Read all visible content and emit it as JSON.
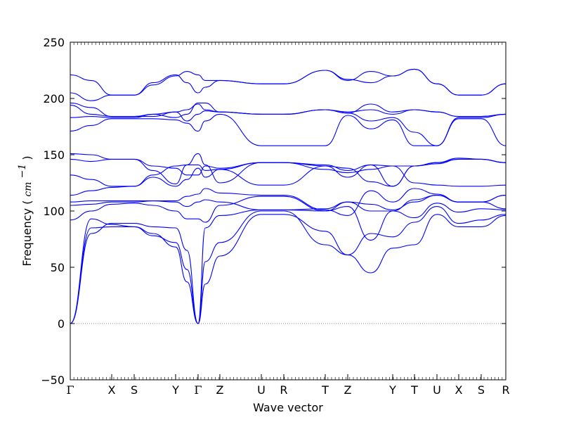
{
  "chart_data": {
    "type": "line",
    "title": "",
    "xlabel": "Wave vector",
    "ylabel": "Frequency",
    "ylabel_unit": "cm",
    "ylabel_unit_power": "−1",
    "ylim": [
      -50,
      250
    ],
    "yticks": [
      "−50",
      "0",
      "50",
      "100",
      "150",
      "200",
      "250"
    ],
    "ytick_values": [
      -50,
      0,
      50,
      100,
      150,
      200,
      250
    ],
    "xlim": [
      0,
      1
    ],
    "kpoints": [
      {
        "label": "Γ",
        "x": 0.0
      },
      {
        "label": "X",
        "x": 0.0952
      },
      {
        "label": "S",
        "x": 0.1468
      },
      {
        "label": "Y",
        "x": 0.2419
      },
      {
        "label": "Γ",
        "x": 0.2935
      },
      {
        "label": "Z",
        "x": 0.3435
      },
      {
        "label": "U",
        "x": 0.4387
      },
      {
        "label": "R",
        "x": 0.4903
      },
      {
        "label": "T",
        "x": 0.5855
      },
      {
        "label": "Z",
        "x": 0.6371
      },
      {
        "label": "Y",
        "x": 0.7403
      },
      {
        "label": "T",
        "x": 0.7903
      },
      {
        "label": "U",
        "x": 0.8419
      },
      {
        "label": "X",
        "x": 0.8919
      },
      {
        "label": "S",
        "x": 0.9435
      },
      {
        "label": "R",
        "x": 1.0
      }
    ],
    "zero_line": {
      "y": 0,
      "style": "dotted",
      "color": "#000000"
    },
    "line_color": "#0000ff",
    "series": [
      {
        "x": [
          0,
          0.048,
          0.0952,
          0.1468,
          0.19,
          0.2419,
          0.268,
          0.2935,
          0.31,
          0.3435,
          0.4387,
          0.4903,
          0.5855,
          0.6371,
          0.69,
          0.7403,
          0.7903,
          0.8419,
          0.8919,
          0.9435,
          1.0
        ],
        "values": [
          0,
          93,
          88,
          86,
          80,
          68,
          37,
          0,
          35,
          60,
          97,
          97,
          82,
          61,
          45,
          67,
          70,
          97,
          86,
          86,
          96
        ]
      },
      {
        "x": [
          0,
          0.048,
          0.0952,
          0.1468,
          0.19,
          0.2419,
          0.268,
          0.2935,
          0.31,
          0.3435,
          0.4387,
          0.4903,
          0.5855,
          0.6371,
          0.69,
          0.7403,
          0.7903,
          0.8419,
          0.8919,
          0.9435,
          1.0
        ],
        "values": [
          0,
          85,
          86,
          86,
          78,
          72,
          48,
          0,
          55,
          72,
          100,
          100,
          70,
          61,
          80,
          77,
          90,
          104,
          89,
          92,
          97
        ]
      },
      {
        "x": [
          0,
          0.048,
          0.0952,
          0.1468,
          0.19,
          0.2419,
          0.268,
          0.2935,
          0.31,
          0.3435,
          0.4387,
          0.4903,
          0.5855,
          0.6371,
          0.69,
          0.7403,
          0.7903,
          0.8419,
          0.8919,
          0.9435,
          1.0
        ],
        "values": [
          0,
          80,
          89,
          89,
          86,
          85,
          65,
          0,
          85,
          96,
          101,
          101,
          100,
          104,
          74,
          100,
          94,
          107,
          99,
          102,
          101
        ]
      },
      {
        "x": [
          0,
          0.048,
          0.0952,
          0.1468,
          0.19,
          0.2419,
          0.268,
          0.2935,
          0.31,
          0.3435,
          0.4387,
          0.4903,
          0.5855,
          0.6371,
          0.69,
          0.7403,
          0.7903,
          0.8419,
          0.8919,
          0.9435,
          1.0
        ],
        "values": [
          92,
          100,
          106,
          107,
          105,
          100,
          93,
          93,
          90,
          105,
          113,
          113,
          100,
          108,
          100,
          100,
          110,
          114,
          108,
          108,
          114
        ]
      },
      {
        "x": [
          0,
          0.048,
          0.0952,
          0.1468,
          0.19,
          0.2419,
          0.268,
          0.2935,
          0.31,
          0.3435,
          0.4387,
          0.4903,
          0.5855,
          0.6371,
          0.69,
          0.7403,
          0.7903,
          0.8419,
          0.8919,
          0.9435,
          1.0
        ],
        "values": [
          105,
          106,
          108,
          108,
          109,
          108,
          104,
          108,
          110,
          108,
          101,
          101,
          102,
          108,
          106,
          101,
          108,
          114,
          108,
          108,
          102
        ]
      },
      {
        "x": [
          0,
          0.048,
          0.0952,
          0.1468,
          0.19,
          0.2419,
          0.268,
          0.2935,
          0.31,
          0.3435,
          0.4387,
          0.4903,
          0.5855,
          0.6371,
          0.69,
          0.7403,
          0.7903,
          0.8419,
          0.8919,
          0.9435,
          1.0
        ],
        "values": [
          108,
          109,
          109,
          109,
          109,
          109,
          113,
          115,
          120,
          116,
          114,
          114,
          101,
          96,
          118,
          108,
          120,
          115,
          108,
          108,
          114
        ]
      },
      {
        "x": [
          0,
          0.048,
          0.0952,
          0.1468,
          0.19,
          0.2419,
          0.268,
          0.2935,
          0.31,
          0.3435,
          0.4387,
          0.4903,
          0.5855,
          0.6371,
          0.69,
          0.7403,
          0.7903,
          0.8419,
          0.8919,
          0.9435,
          1.0
        ],
        "values": [
          114,
          118,
          121,
          122,
          130,
          122,
          128,
          138,
          130,
          137,
          123,
          123,
          140,
          138,
          126,
          122,
          140,
          143,
          147,
          146,
          143
        ]
      },
      {
        "x": [
          0,
          0.048,
          0.0952,
          0.1468,
          0.19,
          0.2419,
          0.268,
          0.2935,
          0.31,
          0.3435,
          0.4387,
          0.4903,
          0.5855,
          0.6371,
          0.69,
          0.7403,
          0.7903,
          0.8419,
          0.8919,
          0.9435,
          1.0
        ],
        "values": [
          132,
          128,
          122,
          122,
          132,
          140,
          141,
          141,
          136,
          137,
          143,
          143,
          141,
          136,
          141,
          140,
          125,
          123,
          122,
          122,
          123
        ]
      },
      {
        "x": [
          0,
          0.048,
          0.0952,
          0.1468,
          0.19,
          0.2419,
          0.268,
          0.2935,
          0.31,
          0.3435,
          0.4387,
          0.4903,
          0.5855,
          0.6371,
          0.69,
          0.7403,
          0.7903,
          0.8419,
          0.8919,
          0.9435,
          1.0
        ],
        "values": [
          146,
          144,
          146,
          146,
          140,
          138,
          132,
          132,
          140,
          138,
          143,
          143,
          137,
          134,
          137,
          140,
          140,
          142,
          146,
          146,
          143
        ]
      },
      {
        "x": [
          0,
          0.048,
          0.0952,
          0.1468,
          0.19,
          0.2419,
          0.268,
          0.2935,
          0.31,
          0.3435,
          0.4387,
          0.4903,
          0.5855,
          0.6371,
          0.69,
          0.7403,
          0.7903,
          0.8419,
          0.8919,
          0.9435,
          1.0
        ],
        "values": [
          151,
          150,
          146,
          146,
          136,
          124,
          141,
          151,
          141,
          125,
          143,
          143,
          140,
          130,
          141,
          122,
          140,
          143,
          146,
          146,
          143
        ]
      },
      {
        "x": [
          0,
          0.048,
          0.0952,
          0.1468,
          0.19,
          0.2419,
          0.268,
          0.2935,
          0.31,
          0.3435,
          0.4387,
          0.4903,
          0.5855,
          0.6371,
          0.69,
          0.7403,
          0.7903,
          0.8419,
          0.8919,
          0.9435,
          1.0
        ],
        "values": [
          171,
          176,
          182,
          182,
          182,
          181,
          178,
          171,
          180,
          186,
          158,
          158,
          158,
          185,
          173,
          181,
          158,
          158,
          182,
          182,
          158
        ]
      },
      {
        "x": [
          0,
          0.048,
          0.0952,
          0.1468,
          0.19,
          0.2419,
          0.268,
          0.2935,
          0.31,
          0.3435,
          0.4387,
          0.4903,
          0.5855,
          0.6371,
          0.69,
          0.7403,
          0.7903,
          0.8419,
          0.8919,
          0.9435,
          1.0
        ],
        "values": [
          183,
          184,
          183,
          183,
          186,
          188,
          180,
          186,
          189,
          188,
          186,
          186,
          190,
          187,
          180,
          183,
          170,
          158,
          183,
          183,
          186
        ]
      },
      {
        "x": [
          0,
          0.048,
          0.0952,
          0.1468,
          0.19,
          0.2419,
          0.268,
          0.2935,
          0.31,
          0.3435,
          0.4387,
          0.4903,
          0.5855,
          0.6371,
          0.69,
          0.7403,
          0.7903,
          0.8419,
          0.8919,
          0.9435,
          1.0
        ],
        "values": [
          194,
          186,
          184,
          184,
          184,
          188,
          190,
          195,
          190,
          188,
          186,
          186,
          190,
          188,
          190,
          186,
          190,
          188,
          184,
          184,
          186
        ]
      },
      {
        "x": [
          0,
          0.048,
          0.0952,
          0.1468,
          0.19,
          0.2419,
          0.268,
          0.2935,
          0.31,
          0.3435,
          0.4387,
          0.4903,
          0.5855,
          0.6371,
          0.69,
          0.7403,
          0.7903,
          0.8419,
          0.8919,
          0.9435,
          1.0
        ],
        "values": [
          196,
          192,
          184,
          184,
          186,
          183,
          186,
          196,
          196,
          188,
          186,
          186,
          190,
          187,
          195,
          188,
          190,
          188,
          184,
          184,
          186
        ]
      },
      {
        "x": [
          0,
          0.048,
          0.0952,
          0.1468,
          0.19,
          0.2419,
          0.268,
          0.2935,
          0.31,
          0.3435,
          0.4387,
          0.4903,
          0.5855,
          0.6371,
          0.69,
          0.7403,
          0.7903,
          0.8419,
          0.8919,
          0.9435,
          1.0
        ],
        "values": [
          205,
          198,
          203,
          203,
          214,
          221,
          214,
          205,
          210,
          216,
          213,
          213,
          225,
          216,
          224,
          220,
          226,
          213,
          203,
          203,
          213
        ]
      },
      {
        "x": [
          0,
          0.048,
          0.0952,
          0.1468,
          0.19,
          0.2419,
          0.268,
          0.2935,
          0.31,
          0.3435,
          0.4387,
          0.4903,
          0.5855,
          0.6371,
          0.69,
          0.7403,
          0.7903,
          0.8419,
          0.8919,
          0.9435,
          1.0
        ],
        "values": [
          221,
          216,
          203,
          203,
          212,
          220,
          224,
          221,
          216,
          216,
          213,
          213,
          225,
          217,
          214,
          220,
          226,
          213,
          203,
          203,
          213
        ]
      }
    ]
  }
}
